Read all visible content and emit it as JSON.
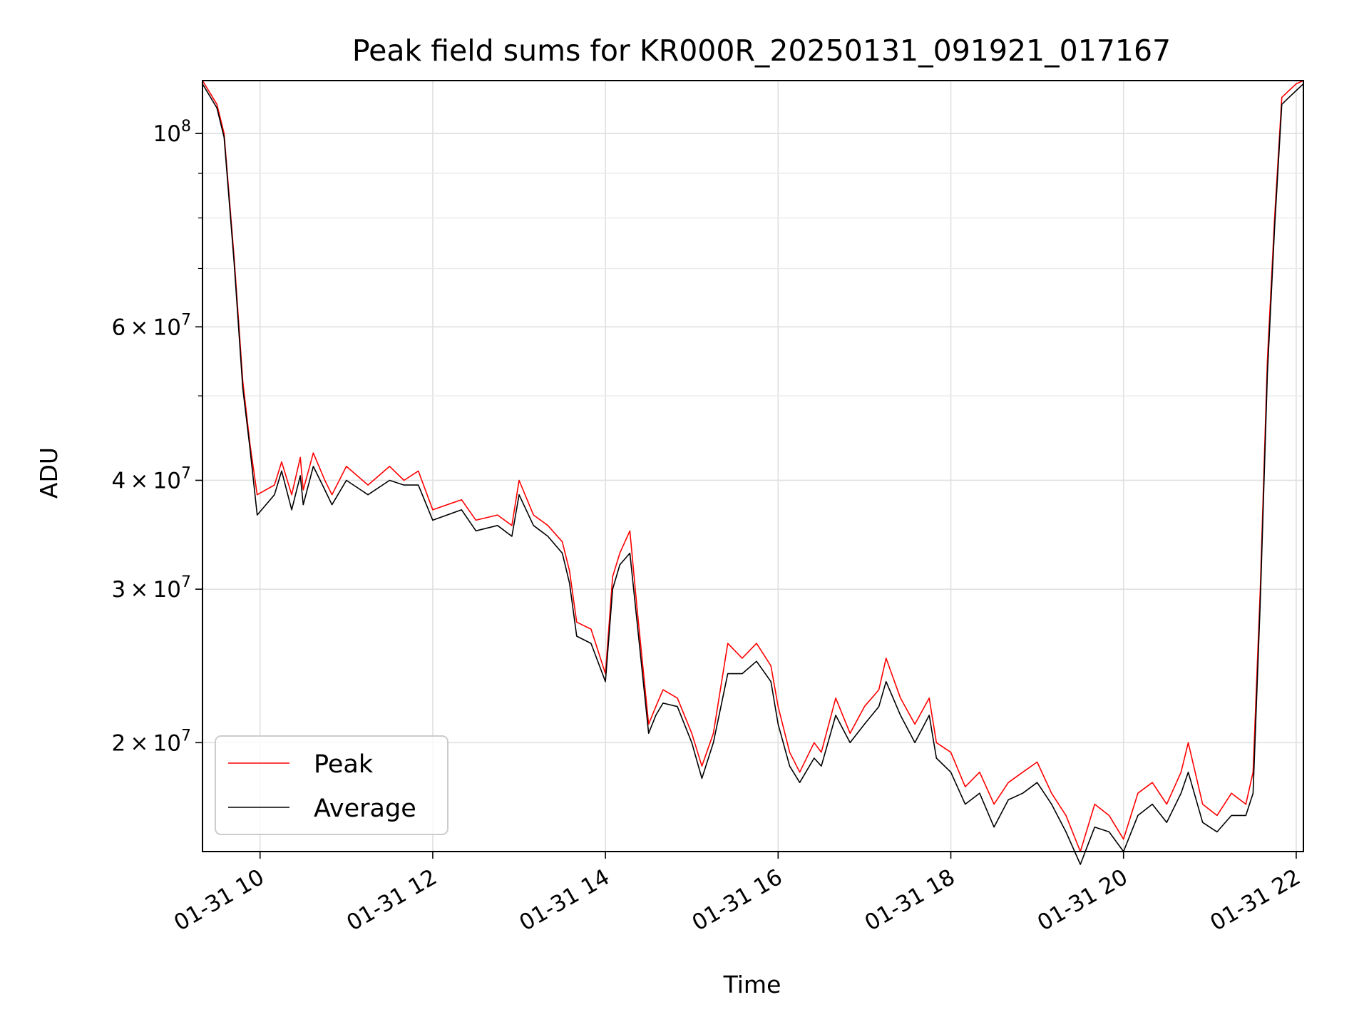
{
  "chart_data": {
    "type": "line",
    "title": "Peak field sums for KR000R_20250131_091921_017167",
    "xlabel": "Time",
    "ylabel": "ADU",
    "y_scale": "log",
    "xlim": [
      "2025-01-31 09:20",
      "2025-01-31 22:05"
    ],
    "ylim": [
      15000000,
      115000000
    ],
    "grid": true,
    "legend_position": "lower-left",
    "x_ticks": [
      {
        "label": "01-31 10",
        "x": "2025-01-31 10:00"
      },
      {
        "label": "01-31 12",
        "x": "2025-01-31 12:00"
      },
      {
        "label": "01-31 14",
        "x": "2025-01-31 14:00"
      },
      {
        "label": "01-31 16",
        "x": "2025-01-31 16:00"
      },
      {
        "label": "01-31 18",
        "x": "2025-01-31 18:00"
      },
      {
        "label": "01-31 20",
        "x": "2025-01-31 20:00"
      },
      {
        "label": "01-31 22",
        "x": "2025-01-31 22:00"
      }
    ],
    "y_ticks": [
      {
        "value": 20000000,
        "mantissa": "2",
        "base": "10",
        "exponent": "7"
      },
      {
        "value": 30000000,
        "mantissa": "3",
        "base": "10",
        "exponent": "7"
      },
      {
        "value": 40000000,
        "mantissa": "4",
        "base": "10",
        "exponent": "7"
      },
      {
        "value": 60000000,
        "mantissa": "6",
        "base": "10",
        "exponent": "7"
      },
      {
        "value": 100000000,
        "mantissa": "",
        "base": "10",
        "exponent": "8"
      }
    ],
    "y_minor_ticks": [
      50000000,
      70000000,
      80000000,
      90000000
    ],
    "series": [
      {
        "name": "Peak",
        "color": "#ff0000",
        "x": [
          "2025-01-31 09:20",
          "2025-01-31 09:30",
          "2025-01-31 09:35",
          "2025-01-31 09:42",
          "2025-01-31 09:48",
          "2025-01-31 09:53",
          "2025-01-31 09:58",
          "2025-01-31 10:10",
          "2025-01-31 10:15",
          "2025-01-31 10:22",
          "2025-01-31 10:28",
          "2025-01-31 10:30",
          "2025-01-31 10:37",
          "2025-01-31 10:45",
          "2025-01-31 10:50",
          "2025-01-31 11:00",
          "2025-01-31 11:15",
          "2025-01-31 11:30",
          "2025-01-31 11:40",
          "2025-01-31 11:50",
          "2025-01-31 12:00",
          "2025-01-31 12:20",
          "2025-01-31 12:30",
          "2025-01-31 12:45",
          "2025-01-31 12:55",
          "2025-01-31 13:00",
          "2025-01-31 13:10",
          "2025-01-31 13:20",
          "2025-01-31 13:30",
          "2025-01-31 13:35",
          "2025-01-31 13:40",
          "2025-01-31 13:50",
          "2025-01-31 14:00",
          "2025-01-31 14:05",
          "2025-01-31 14:10",
          "2025-01-31 14:17",
          "2025-01-31 14:22",
          "2025-01-31 14:30",
          "2025-01-31 14:35",
          "2025-01-31 14:40",
          "2025-01-31 14:50",
          "2025-01-31 15:00",
          "2025-01-31 15:07",
          "2025-01-31 15:15",
          "2025-01-31 15:25",
          "2025-01-31 15:35",
          "2025-01-31 15:45",
          "2025-01-31 15:55",
          "2025-01-31 16:00",
          "2025-01-31 16:08",
          "2025-01-31 16:15",
          "2025-01-31 16:25",
          "2025-01-31 16:30",
          "2025-01-31 16:40",
          "2025-01-31 16:50",
          "2025-01-31 17:00",
          "2025-01-31 17:10",
          "2025-01-31 17:15",
          "2025-01-31 17:25",
          "2025-01-31 17:35",
          "2025-01-31 17:45",
          "2025-01-31 17:50",
          "2025-01-31 18:00",
          "2025-01-31 18:10",
          "2025-01-31 18:20",
          "2025-01-31 18:30",
          "2025-01-31 18:40",
          "2025-01-31 18:50",
          "2025-01-31 19:00",
          "2025-01-31 19:10",
          "2025-01-31 19:20",
          "2025-01-31 19:30",
          "2025-01-31 19:40",
          "2025-01-31 19:50",
          "2025-01-31 20:00",
          "2025-01-31 20:10",
          "2025-01-31 20:20",
          "2025-01-31 20:30",
          "2025-01-31 20:40",
          "2025-01-31 20:45",
          "2025-01-31 20:55",
          "2025-01-31 21:05",
          "2025-01-31 21:15",
          "2025-01-31 21:25",
          "2025-01-31 21:30",
          "2025-01-31 21:35",
          "2025-01-31 21:40",
          "2025-01-31 21:45",
          "2025-01-31 21:50",
          "2025-01-31 21:55",
          "2025-01-31 22:00",
          "2025-01-31 22:05"
        ],
        "values": [
          115000000,
          108000000,
          100000000,
          72000000,
          52000000,
          44000000,
          38500000,
          39500000,
          42000000,
          38500000,
          42500000,
          39000000,
          43000000,
          40000000,
          38500000,
          41500000,
          39500000,
          41500000,
          40000000,
          41000000,
          37000000,
          38000000,
          36000000,
          36500000,
          35500000,
          40000000,
          36500000,
          35500000,
          34000000,
          31500000,
          27500000,
          27000000,
          24000000,
          31000000,
          33000000,
          35000000,
          28500000,
          21000000,
          22000000,
          23000000,
          22500000,
          20500000,
          18800000,
          20500000,
          26000000,
          25000000,
          26000000,
          24500000,
          22000000,
          19500000,
          18500000,
          20000000,
          19500000,
          22500000,
          20500000,
          22000000,
          23000000,
          25000000,
          22500000,
          21000000,
          22500000,
          20000000,
          19500000,
          17800000,
          18500000,
          17000000,
          18000000,
          18500000,
          19000000,
          17500000,
          16500000,
          15000000,
          17000000,
          16500000,
          15500000,
          17500000,
          18000000,
          17000000,
          18500000,
          20000000,
          17000000,
          16500000,
          17500000,
          17000000,
          18500000,
          30000000,
          55000000,
          80000000,
          110000000,
          112000000,
          114000000,
          115000000
        ]
      },
      {
        "name": "Average",
        "color": "#000000",
        "x": [
          "2025-01-31 09:20",
          "2025-01-31 09:30",
          "2025-01-31 09:35",
          "2025-01-31 09:42",
          "2025-01-31 09:48",
          "2025-01-31 09:53",
          "2025-01-31 09:58",
          "2025-01-31 10:10",
          "2025-01-31 10:15",
          "2025-01-31 10:22",
          "2025-01-31 10:28",
          "2025-01-31 10:30",
          "2025-01-31 10:37",
          "2025-01-31 10:45",
          "2025-01-31 10:50",
          "2025-01-31 11:00",
          "2025-01-31 11:15",
          "2025-01-31 11:30",
          "2025-01-31 11:40",
          "2025-01-31 11:50",
          "2025-01-31 12:00",
          "2025-01-31 12:20",
          "2025-01-31 12:30",
          "2025-01-31 12:45",
          "2025-01-31 12:55",
          "2025-01-31 13:00",
          "2025-01-31 13:10",
          "2025-01-31 13:20",
          "2025-01-31 13:30",
          "2025-01-31 13:35",
          "2025-01-31 13:40",
          "2025-01-31 13:50",
          "2025-01-31 14:00",
          "2025-01-31 14:05",
          "2025-01-31 14:10",
          "2025-01-31 14:17",
          "2025-01-31 14:22",
          "2025-01-31 14:30",
          "2025-01-31 14:35",
          "2025-01-31 14:40",
          "2025-01-31 14:50",
          "2025-01-31 15:00",
          "2025-01-31 15:07",
          "2025-01-31 15:15",
          "2025-01-31 15:25",
          "2025-01-31 15:35",
          "2025-01-31 15:45",
          "2025-01-31 15:55",
          "2025-01-31 16:00",
          "2025-01-31 16:08",
          "2025-01-31 16:15",
          "2025-01-31 16:25",
          "2025-01-31 16:30",
          "2025-01-31 16:40",
          "2025-01-31 16:50",
          "2025-01-31 17:00",
          "2025-01-31 17:10",
          "2025-01-31 17:15",
          "2025-01-31 17:25",
          "2025-01-31 17:35",
          "2025-01-31 17:45",
          "2025-01-31 17:50",
          "2025-01-31 18:00",
          "2025-01-31 18:10",
          "2025-01-31 18:20",
          "2025-01-31 18:30",
          "2025-01-31 18:40",
          "2025-01-31 18:50",
          "2025-01-31 19:00",
          "2025-01-31 19:10",
          "2025-01-31 19:20",
          "2025-01-31 19:30",
          "2025-01-31 19:40",
          "2025-01-31 19:50",
          "2025-01-31 20:00",
          "2025-01-31 20:10",
          "2025-01-31 20:20",
          "2025-01-31 20:30",
          "2025-01-31 20:40",
          "2025-01-31 20:45",
          "2025-01-31 20:55",
          "2025-01-31 21:05",
          "2025-01-31 21:15",
          "2025-01-31 21:25",
          "2025-01-31 21:30",
          "2025-01-31 21:35",
          "2025-01-31 21:40",
          "2025-01-31 21:45",
          "2025-01-31 21:50",
          "2025-01-31 21:55",
          "2025-01-31 22:00",
          "2025-01-31 22:05"
        ],
        "values": [
          114000000,
          107000000,
          99000000,
          71000000,
          51000000,
          43500000,
          36500000,
          38500000,
          41000000,
          37000000,
          40500000,
          37500000,
          41500000,
          39000000,
          37500000,
          40000000,
          38500000,
          40000000,
          39500000,
          39500000,
          36000000,
          37000000,
          35000000,
          35500000,
          34500000,
          38500000,
          35500000,
          34500000,
          33000000,
          30500000,
          26500000,
          26000000,
          23500000,
          30000000,
          32000000,
          33000000,
          27500000,
          20500000,
          21500000,
          22200000,
          22000000,
          20000000,
          18200000,
          20000000,
          24000000,
          24000000,
          24800000,
          23500000,
          21000000,
          18800000,
          18000000,
          19200000,
          18800000,
          21500000,
          20000000,
          21000000,
          22000000,
          23500000,
          21500000,
          20000000,
          21500000,
          19200000,
          18500000,
          17000000,
          17500000,
          16000000,
          17200000,
          17500000,
          18000000,
          17000000,
          15800000,
          14500000,
          16000000,
          15800000,
          15000000,
          16500000,
          17000000,
          16200000,
          17500000,
          18500000,
          16200000,
          15800000,
          16500000,
          16500000,
          17500000,
          29000000,
          53000000,
          78000000,
          108000000,
          110000000,
          112000000,
          114000000
        ]
      }
    ]
  }
}
